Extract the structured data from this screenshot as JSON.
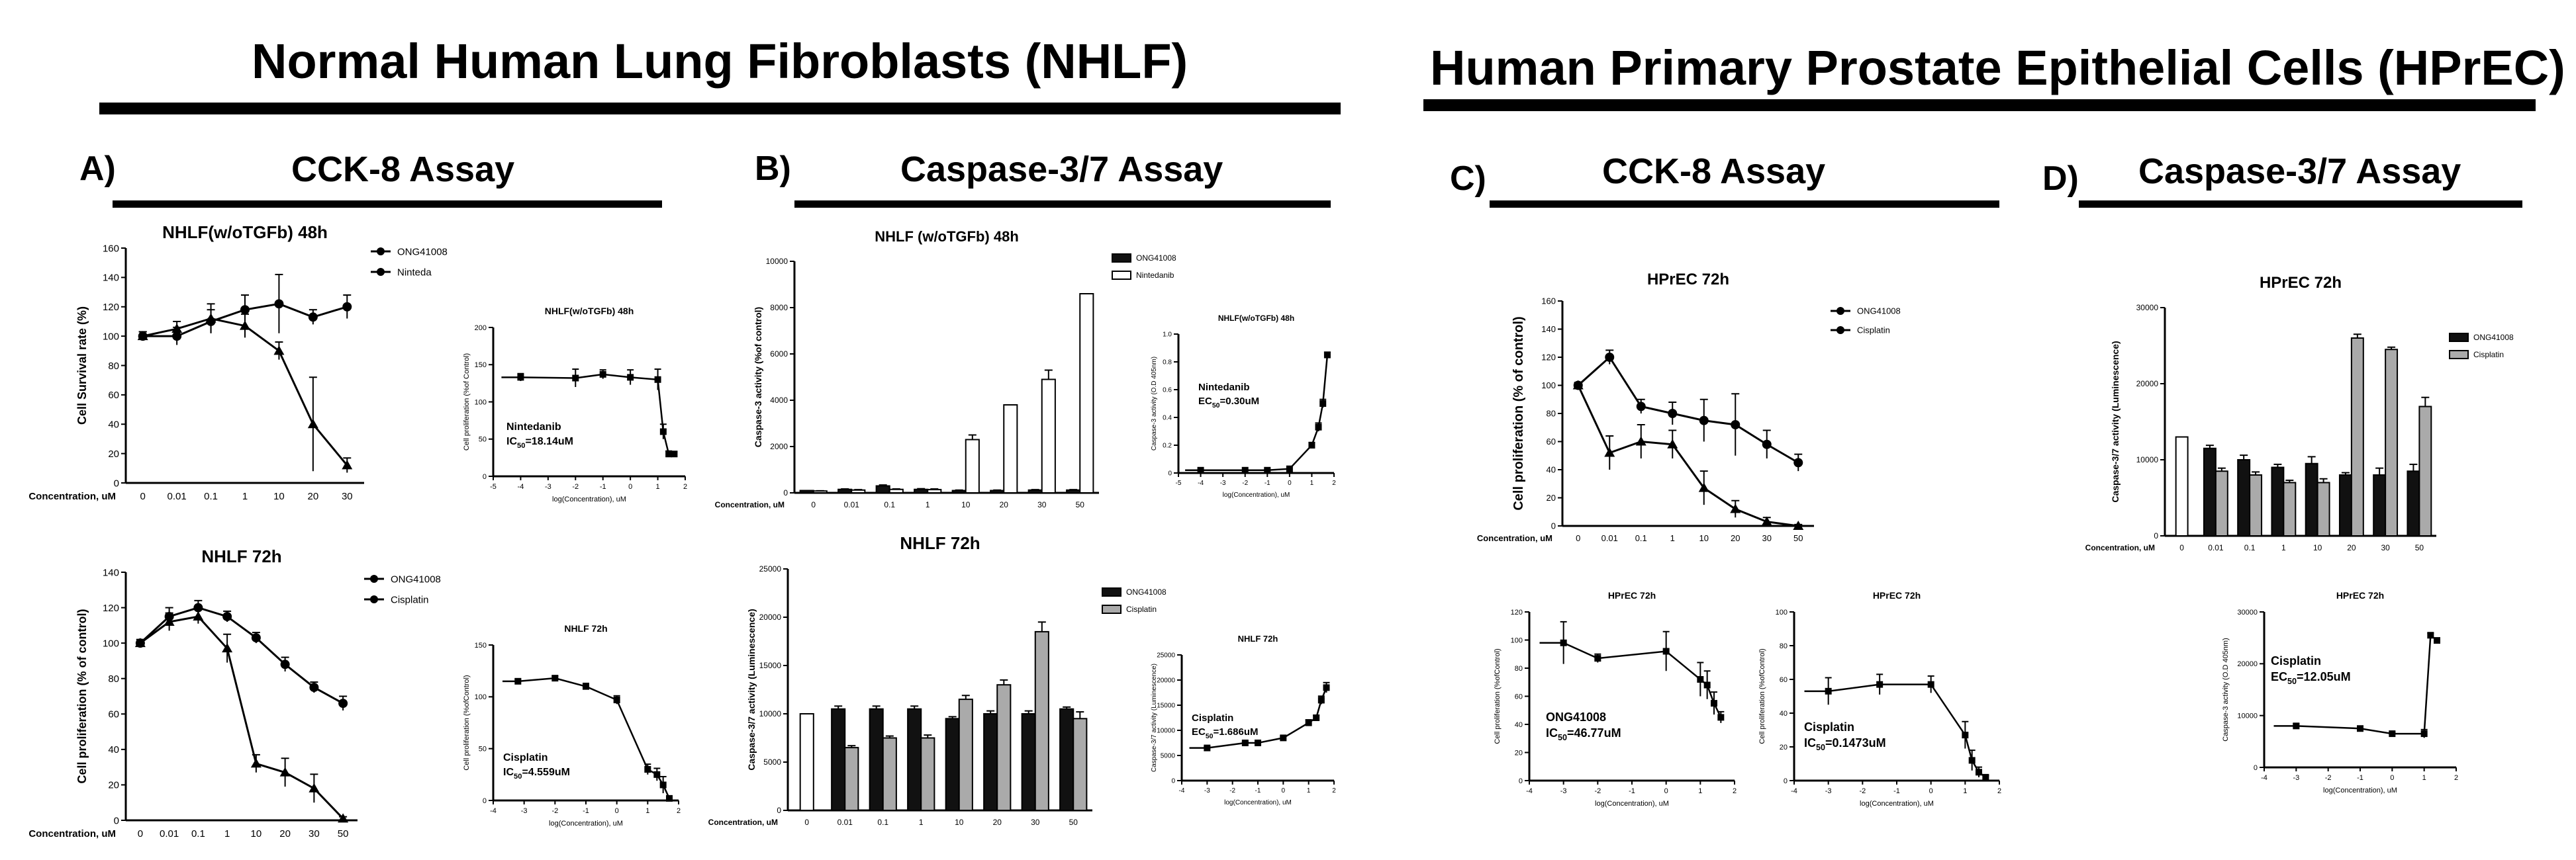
{
  "headers": {
    "left_title": "Normal Human Lung Fibroblasts (NHLF)",
    "right_title": "Human Primary Prostate Epithelial Cells (HPrEC)"
  },
  "panels": [
    {
      "letter": "A)",
      "title": "CCK-8 Assay"
    },
    {
      "letter": "B)",
      "title": "Caspase-3/7 Assay"
    },
    {
      "letter": "C)",
      "title": "CCK-8 Assay"
    },
    {
      "letter": "D)",
      "title": "Caspase-3/7 Assay"
    }
  ],
  "chart_data": [
    {
      "id": "a1",
      "type": "line",
      "title": "NHLF(w/oTGFb) 48h",
      "ylabel": "Cell Survival rate (%)",
      "xlabel": "Concentration, uM",
      "categories": [
        "0",
        "0.01",
        "0.1",
        "1",
        "10",
        "20",
        "30"
      ],
      "ylim": [
        0,
        160
      ],
      "yticks": [
        "0",
        "20",
        "40",
        "60",
        "80",
        "100",
        "120",
        "140",
        "160"
      ],
      "series": [
        {
          "name": "ONG41008",
          "values": [
            100,
            100,
            110,
            118,
            122,
            113,
            120
          ],
          "err": [
            3,
            6,
            8,
            10,
            20,
            5,
            8
          ]
        },
        {
          "name": "Ninteda",
          "values": [
            100,
            105,
            112,
            107,
            90,
            40,
            12
          ],
          "err": [
            3,
            5,
            10,
            8,
            6,
            32,
            5
          ]
        }
      ]
    },
    {
      "id": "a1i",
      "type": "scatter",
      "title": "NHLF(w/oTGFb) 48h",
      "ylabel": "Cell proliferation (%of Control)",
      "xlabel": "log(Concentration), uM",
      "xlim": [
        -5,
        2
      ],
      "ylim": [
        0,
        200
      ],
      "xticks": [
        "-5",
        "-4",
        "-3",
        "-2",
        "-1",
        "0",
        "1",
        "2"
      ],
      "yticks": [
        "0",
        "50",
        "100",
        "150",
        "200"
      ],
      "x": [
        -4,
        -2,
        -1,
        0,
        1,
        1.2,
        1.4,
        1.6
      ],
      "y": [
        133,
        132,
        137,
        133,
        130,
        60,
        30,
        30
      ],
      "err": [
        5,
        12,
        6,
        10,
        14,
        10,
        4,
        3
      ],
      "annotation": [
        "Nintedanib",
        "IC",
        "50",
        "=18.14uM"
      ]
    },
    {
      "id": "a2",
      "type": "line",
      "title": "NHLF 72h",
      "ylabel": "Cell proliferation (% of control)",
      "xlabel": "Concentration, uM",
      "categories": [
        "0",
        "0.01",
        "0.1",
        "1",
        "10",
        "20",
        "30",
        "50"
      ],
      "ylim": [
        0,
        140
      ],
      "yticks": [
        "0",
        "20",
        "40",
        "60",
        "80",
        "100",
        "120",
        "140"
      ],
      "series": [
        {
          "name": "ONG41008",
          "values": [
            100,
            115,
            120,
            115,
            103,
            88,
            75,
            66
          ],
          "err": [
            2,
            5,
            4,
            3,
            3,
            4,
            3,
            4
          ]
        },
        {
          "name": "Cisplatin",
          "values": [
            100,
            112,
            115,
            97,
            32,
            27,
            18,
            1
          ],
          "err": [
            2,
            5,
            4,
            8,
            5,
            8,
            8,
            1
          ]
        }
      ]
    },
    {
      "id": "a2i",
      "type": "scatter",
      "title": "NHLF 72h",
      "ylabel": "Cell proliferation (%ofControl)",
      "xlabel": "log(Concentration), uM",
      "xlim": [
        -4,
        2
      ],
      "ylim": [
        0,
        150
      ],
      "xticks": [
        "-4",
        "-3",
        "-2",
        "-1",
        "0",
        "1",
        "2"
      ],
      "yticks": [
        "0",
        "50",
        "100",
        "150"
      ],
      "x": [
        -3.2,
        -2,
        -1,
        0,
        1,
        1.3,
        1.5,
        1.7
      ],
      "y": [
        115,
        118,
        110,
        97,
        30,
        25,
        15,
        2
      ],
      "err": [
        2,
        2,
        3,
        4,
        5,
        6,
        8,
        1
      ],
      "annotation": [
        "Cisplatin",
        "IC",
        "50",
        "=4.559uM"
      ]
    },
    {
      "id": "b1",
      "type": "bar",
      "title": "NHLF (w/oTGFb) 48h",
      "ylabel": "Caspase-3 activity (%of control)",
      "xlabel": "Concentration, uM",
      "categories": [
        "0",
        "0.01",
        "0.1",
        "1",
        "10",
        "20",
        "30",
        "50"
      ],
      "ylim": [
        0,
        10000
      ],
      "yticks": [
        "0",
        "2000",
        "4000",
        "6000",
        "8000",
        "10000"
      ],
      "series": [
        {
          "name": "ONG41008",
          "values": [
            100,
            150,
            300,
            150,
            100,
            100,
            120,
            120
          ],
          "err": [
            0,
            20,
            40,
            30,
            20,
            20,
            20,
            20
          ]
        },
        {
          "name": "Nintedanib",
          "values": [
            80,
            120,
            150,
            140,
            2300,
            3800,
            4900,
            8600
          ],
          "err": [
            10,
            20,
            20,
            30,
            200,
            0,
            400,
            0
          ]
        }
      ]
    },
    {
      "id": "b1i",
      "type": "scatter",
      "title": "NHLF(w/oTGFb) 48h",
      "ylabel": "Caspase-3 activity (O.D 405nm)",
      "xlabel": "log(Concentration), uM",
      "xlim": [
        -5,
        2
      ],
      "ylim": [
        0,
        1.0
      ],
      "xticks": [
        "-5",
        "-4",
        "-3",
        "-2",
        "-1",
        "0",
        "1",
        "2"
      ],
      "yticks": [
        "0",
        "0.2",
        "0.4",
        "0.6",
        "0.8",
        "1.0"
      ],
      "x": [
        -4,
        -2,
        -1,
        0,
        1,
        1.3,
        1.5,
        1.7
      ],
      "y": [
        0.02,
        0.02,
        0.02,
        0.03,
        0.2,
        0.33,
        0.5,
        0.85
      ],
      "err": [
        0,
        0,
        0,
        0,
        0.02,
        0.03,
        0.03,
        0.02
      ],
      "annotation": [
        "Nintedanib",
        "EC",
        "50",
        "=0.30uM"
      ]
    },
    {
      "id": "b2",
      "type": "bar",
      "title": "NHLF 72h",
      "ylabel": "Caspase-3/7 activity (Luminescence)",
      "xlabel": "Concentration, uM",
      "categories": [
        "0",
        "0.01",
        "0.1",
        "1",
        "10",
        "20",
        "30",
        "50"
      ],
      "ylim": [
        0,
        25000
      ],
      "yticks": [
        "0",
        "5000",
        "10000",
        "15000",
        "20000",
        "25000"
      ],
      "series": [
        {
          "name": "ONG41008",
          "values": [
            10000,
            10500,
            10500,
            10500,
            9500,
            10000,
            10000,
            10500
          ],
          "err": [
            0,
            300,
            300,
            300,
            200,
            300,
            300,
            200
          ]
        },
        {
          "name": "Cisplatin",
          "values": [
            null,
            6500,
            7500,
            7500,
            11500,
            13000,
            18500,
            9500
          ],
          "err": [
            0,
            200,
            200,
            300,
            400,
            500,
            1000,
            700
          ]
        }
      ]
    },
    {
      "id": "b2i",
      "type": "scatter",
      "title": "NHLF 72h",
      "ylabel": "Caspase-3/7 activity (Luminescence)",
      "xlabel": "log(Concentration), uM",
      "xlim": [
        -4,
        2
      ],
      "ylim": [
        0,
        25000
      ],
      "xticks": [
        "-4",
        "-3",
        "-2",
        "-1",
        "0",
        "1",
        "2"
      ],
      "yticks": [
        "0",
        "5000",
        "10000",
        "15000",
        "20000",
        "25000"
      ],
      "x": [
        -3,
        -1.5,
        -1,
        0,
        1,
        1.3,
        1.5,
        1.7
      ],
      "y": [
        6500,
        7500,
        7500,
        8500,
        11500,
        12500,
        16000,
        18500
      ],
      "err": [
        200,
        200,
        200,
        300,
        600,
        500,
        800,
        1000
      ],
      "annotation": [
        "Cisplatin",
        "EC",
        "50",
        "=1.686uM"
      ]
    },
    {
      "id": "c1",
      "type": "line",
      "title": "HPrEC 72h",
      "ylabel": "Cell proliferation (% of control)",
      "xlabel": "Concentration, uM",
      "categories": [
        "0",
        "0.01",
        "0.1",
        "1",
        "10",
        "20",
        "30",
        "50"
      ],
      "ylim": [
        0,
        160
      ],
      "yticks": [
        "0",
        "20",
        "40",
        "60",
        "80",
        "100",
        "120",
        "140",
        "160"
      ],
      "series": [
        {
          "name": "ONG41008",
          "values": [
            100,
            120,
            85,
            80,
            75,
            72,
            58,
            45
          ],
          "err": [
            2,
            5,
            5,
            8,
            15,
            22,
            10,
            6
          ]
        },
        {
          "name": "Cisplatin",
          "values": [
            100,
            52,
            60,
            58,
            27,
            12,
            3,
            0
          ],
          "err": [
            2,
            12,
            12,
            10,
            12,
            6,
            3,
            1
          ]
        }
      ]
    },
    {
      "id": "c1i",
      "type": "scatter",
      "title": "HPrEC 72h",
      "ylabel": "Cell proliferation (%ofControl)",
      "xlabel": "log(Concentration), uM",
      "xlim": [
        -4,
        2
      ],
      "ylim": [
        0,
        120
      ],
      "xticks": [
        "-4",
        "-3",
        "-2",
        "-1",
        "0",
        "1",
        "2"
      ],
      "yticks": [
        "0",
        "20",
        "40",
        "60",
        "80",
        "100",
        "120"
      ],
      "x": [
        -3,
        -2,
        0,
        1,
        1.2,
        1.4,
        1.6
      ],
      "y": [
        98,
        87,
        92,
        72,
        68,
        55,
        45
      ],
      "err": [
        15,
        3,
        14,
        12,
        10,
        8,
        4
      ],
      "annotation": [
        "ONG41008",
        "IC",
        "50",
        "=46.77uM"
      ]
    },
    {
      "id": "c2i",
      "type": "scatter",
      "title": "HPrEC 72h",
      "ylabel": "Cell proliferation (%ofControl)",
      "xlabel": "log(Concentration), uM",
      "xlim": [
        -4,
        2
      ],
      "ylim": [
        0,
        100
      ],
      "xticks": [
        "-4",
        "-3",
        "-2",
        "-1",
        "0",
        "1",
        "2"
      ],
      "yticks": [
        "0",
        "20",
        "40",
        "60",
        "80",
        "100"
      ],
      "x": [
        -3,
        -1.5,
        0,
        1,
        1.2,
        1.4,
        1.6
      ],
      "y": [
        53,
        57,
        57,
        27,
        12,
        5,
        2
      ],
      "err": [
        8,
        6,
        5,
        8,
        6,
        3,
        1
      ],
      "annotation": [
        "Cisplatin",
        "IC",
        "50",
        "=0.1473uM"
      ]
    },
    {
      "id": "d1",
      "type": "bar",
      "title": "HPrEC 72h",
      "ylabel": "Caspase-3/7 activity (Luminescence)",
      "xlabel": "Concentration, uM",
      "categories": [
        "0",
        "0.01",
        "0.1",
        "1",
        "10",
        "20",
        "30",
        "50"
      ],
      "ylim": [
        0,
        30000
      ],
      "yticks": [
        "0",
        "10000",
        "20000",
        "30000"
      ],
      "series": [
        {
          "name": "ONG41008",
          "values": [
            13000,
            11500,
            10000,
            9000,
            9500,
            8000,
            8000,
            8500
          ],
          "err": [
            0,
            400,
            600,
            400,
            900,
            300,
            900,
            900
          ]
        },
        {
          "name": "Cisplatin",
          "values": [
            null,
            8500,
            8000,
            7000,
            7000,
            26000,
            24500,
            17000
          ],
          "err": [
            0,
            400,
            400,
            300,
            500,
            500,
            300,
            1200
          ]
        }
      ]
    },
    {
      "id": "d1i",
      "type": "scatter",
      "title": "HPrEC 72h",
      "ylabel": "Caspase-3 activity (O.D 405nm)",
      "xlabel": "log(Concentration), uM",
      "xlim": [
        -4,
        2
      ],
      "ylim": [
        0,
        30000
      ],
      "xticks": [
        "-4",
        "-3",
        "-2",
        "-1",
        "0",
        "1",
        "2"
      ],
      "yticks": [
        "0",
        "10000",
        "20000",
        "30000"
      ],
      "x": [
        -3,
        -1,
        0,
        1,
        1.2,
        1.4
      ],
      "y": [
        8000,
        7500,
        6500,
        6500,
        25500,
        24500
      ],
      "err": [
        400,
        400,
        300,
        800,
        400,
        300
      ],
      "annotation": [
        "Cisplatin",
        "EC",
        "50",
        "=12.05uM"
      ]
    }
  ]
}
